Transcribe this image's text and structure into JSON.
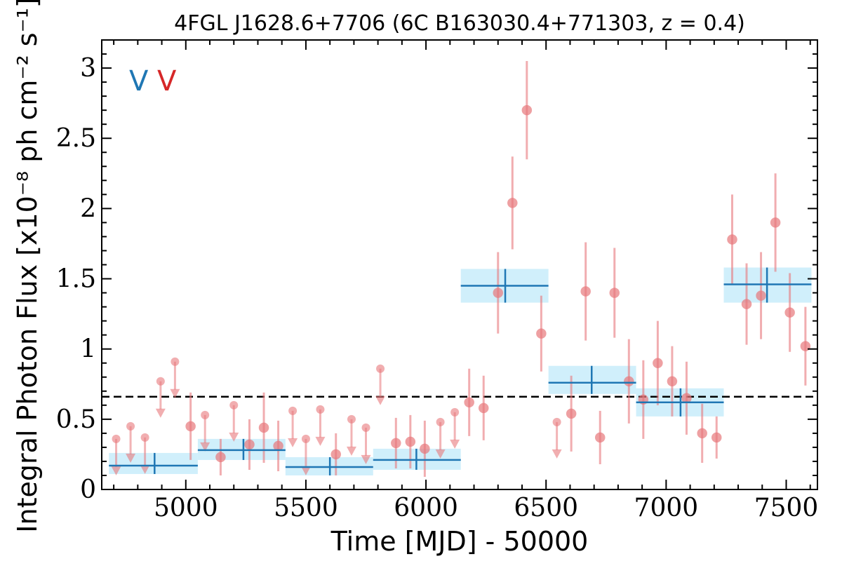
{
  "chart_data": {
    "type": "scatter",
    "title": "4FGL J1628.6+7706 (6C B163030.4+771303, z = 0.4)",
    "xlabel": "Time [MJD] - 50000",
    "ylabel": "Integral Photon Flux [x10⁻⁸ ph cm⁻² s⁻¹]",
    "xlim": [
      4650,
      7630
    ],
    "ylim": [
      0,
      3.2
    ],
    "xticks": [
      5000,
      5500,
      6000,
      6500,
      7000,
      7500
    ],
    "xtick_labels": [
      "5000",
      "5500",
      "6000",
      "6500",
      "7000",
      "7500"
    ],
    "yticks": [
      0,
      0.5,
      1,
      1.5,
      2,
      2.5,
      3
    ],
    "ytick_labels": [
      "0",
      "0.5",
      "1",
      "1.5",
      "2",
      "2.5",
      "3"
    ],
    "mean_flux": 0.66,
    "legend_marks": [
      {
        "text": "V",
        "color": "#1f77b4"
      },
      {
        "text": "V",
        "color": "#d62728"
      }
    ],
    "colors": {
      "short_bin": "#e8787c",
      "long_bin_line": "#1f77b4",
      "long_bin_band": "#cdeefb"
    },
    "short_bins": {
      "name": "",
      "points": [
        {
          "x": 5020,
          "y": 0.45,
          "err": 0.24
        },
        {
          "x": 5145,
          "y": 0.23,
          "err": 0.13
        },
        {
          "x": 5265,
          "y": 0.32,
          "err": 0.18
        },
        {
          "x": 5325,
          "y": 0.44,
          "err": 0.25
        },
        {
          "x": 5385,
          "y": 0.31,
          "err": 0.18
        },
        {
          "x": 5625,
          "y": 0.25,
          "err": 0.15
        },
        {
          "x": 5875,
          "y": 0.33,
          "err": 0.18
        },
        {
          "x": 5935,
          "y": 0.34,
          "err": 0.19
        },
        {
          "x": 5995,
          "y": 0.29,
          "err": 0.2
        },
        {
          "x": 6180,
          "y": 0.62,
          "err": 0.24
        },
        {
          "x": 6240,
          "y": 0.58,
          "err": 0.23
        },
        {
          "x": 6300,
          "y": 1.4,
          "err": 0.29
        },
        {
          "x": 6360,
          "y": 2.04,
          "err": 0.33
        },
        {
          "x": 6420,
          "y": 2.7,
          "err": 0.35
        },
        {
          "x": 6480,
          "y": 1.11,
          "err": 0.27
        },
        {
          "x": 6605,
          "y": 0.54,
          "err": 0.27
        },
        {
          "x": 6665,
          "y": 1.41,
          "err": 0.35
        },
        {
          "x": 6725,
          "y": 0.37,
          "err": 0.19
        },
        {
          "x": 6785,
          "y": 1.4,
          "err": 0.32
        },
        {
          "x": 6845,
          "y": 0.77,
          "err": 0.3
        },
        {
          "x": 6905,
          "y": 0.64,
          "err": 0.28
        },
        {
          "x": 6965,
          "y": 0.9,
          "err": 0.3
        },
        {
          "x": 7025,
          "y": 0.77,
          "err": 0.25
        },
        {
          "x": 7085,
          "y": 0.65,
          "err": 0.26
        },
        {
          "x": 7150,
          "y": 0.4,
          "err": 0.21
        },
        {
          "x": 7210,
          "y": 0.37,
          "err": 0.15
        },
        {
          "x": 7275,
          "y": 1.78,
          "err": 0.32
        },
        {
          "x": 7335,
          "y": 1.32,
          "err": 0.29
        },
        {
          "x": 7395,
          "y": 1.38,
          "err": 0.31
        },
        {
          "x": 7455,
          "y": 1.9,
          "err": 0.35
        },
        {
          "x": 7515,
          "y": 1.26,
          "err": 0.28
        },
        {
          "x": 7580,
          "y": 1.02,
          "err": 0.28
        }
      ],
      "upper_limits": [
        {
          "x": 4710,
          "y": 0.36
        },
        {
          "x": 4770,
          "y": 0.45
        },
        {
          "x": 4830,
          "y": 0.37
        },
        {
          "x": 4895,
          "y": 0.77
        },
        {
          "x": 4955,
          "y": 0.91
        },
        {
          "x": 5080,
          "y": 0.53
        },
        {
          "x": 5200,
          "y": 0.6
        },
        {
          "x": 5445,
          "y": 0.56
        },
        {
          "x": 5500,
          "y": 0.36
        },
        {
          "x": 5560,
          "y": 0.57
        },
        {
          "x": 5690,
          "y": 0.5
        },
        {
          "x": 5750,
          "y": 0.44
        },
        {
          "x": 5810,
          "y": 0.86
        },
        {
          "x": 6060,
          "y": 0.48
        },
        {
          "x": 6120,
          "y": 0.55
        },
        {
          "x": 6545,
          "y": 0.48
        }
      ]
    },
    "long_bins": {
      "name": "",
      "points": [
        {
          "x0": 4680,
          "x1": 5050,
          "y": 0.17,
          "ylo": 0.11,
          "yhi": 0.26,
          "xc": 4870
        },
        {
          "x0": 5050,
          "x1": 5415,
          "y": 0.28,
          "ylo": 0.21,
          "yhi": 0.36,
          "xc": 5240
        },
        {
          "x0": 5415,
          "x1": 5780,
          "y": 0.16,
          "ylo": 0.1,
          "yhi": 0.23,
          "xc": 5600
        },
        {
          "x0": 5780,
          "x1": 6145,
          "y": 0.21,
          "ylo": 0.14,
          "yhi": 0.29,
          "xc": 5960
        },
        {
          "x0": 6145,
          "x1": 6510,
          "y": 1.45,
          "ylo": 1.33,
          "yhi": 1.57,
          "xc": 6330
        },
        {
          "x0": 6510,
          "x1": 6875,
          "y": 0.76,
          "ylo": 0.68,
          "yhi": 0.88,
          "xc": 6690
        },
        {
          "x0": 6875,
          "x1": 7240,
          "y": 0.62,
          "ylo": 0.52,
          "yhi": 0.72,
          "xc": 7060
        },
        {
          "x0": 7240,
          "x1": 7605,
          "y": 1.46,
          "ylo": 1.33,
          "yhi": 1.58,
          "xc": 7420
        }
      ]
    }
  }
}
